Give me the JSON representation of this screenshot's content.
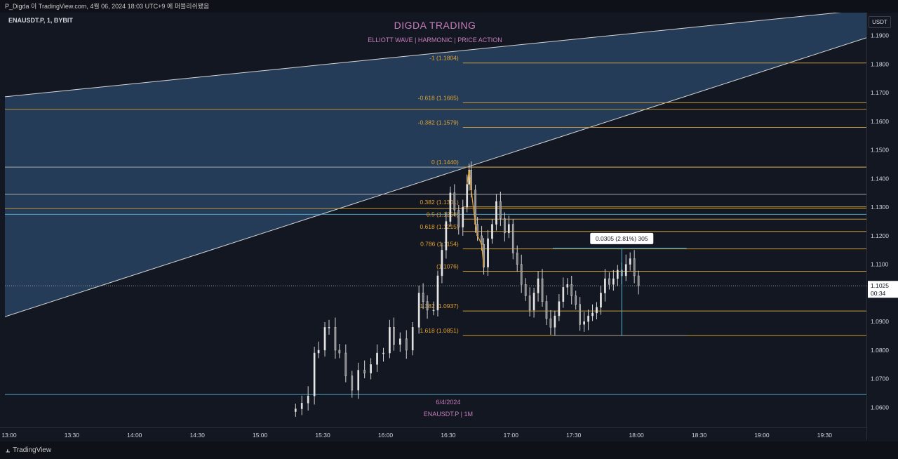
{
  "header": {
    "snapshot_text": "P_Digda 이 TradingView.com, 4월 06, 2024 18:03 UTC+9 에 퍼블리쉬됐음"
  },
  "symbol": {
    "label": "ENAUSDT.P, 1, BYBIT"
  },
  "price_axis": {
    "currency": "USDT"
  },
  "branding": {
    "title": "DIGDA TRADING",
    "subtitle": "ELLIOTT WAVE  |  HARMONIC  |  PRICE ACTION",
    "date_note": "6/4/2024",
    "symbol_note": "ENAUSDT.P | 1M"
  },
  "footer": {
    "logo_text": "TradingView"
  },
  "colors": {
    "background": "#131722",
    "fib": "#c99a3a",
    "fib_label": "#e0a030",
    "channel_fill": "#2b4a6b",
    "cyan_line": "#58b7d6",
    "annotation": "#c77dbb",
    "candle": "#d4d4d4"
  },
  "chart_data": {
    "type": "candlestick",
    "y_axis": {
      "range": [
        1.053,
        1.198
      ],
      "ticks": [
        "1.1900",
        "1.1800",
        "1.1700",
        "1.1600",
        "1.1500",
        "1.1400",
        "1.1300",
        "1.1200",
        "1.1100",
        "1.1000",
        "1.0900",
        "1.0800",
        "1.0700",
        "1.0600"
      ],
      "current_price": "1.1025",
      "countdown": "00:34"
    },
    "x_axis": {
      "ticks": [
        {
          "label": "13:00",
          "time": "13:00"
        },
        {
          "label": "13:30",
          "time": "13:30"
        },
        {
          "label": "14:00",
          "time": "14:00"
        },
        {
          "label": "14:30",
          "time": "14:30"
        },
        {
          "label": "15:00",
          "time": "15:00"
        },
        {
          "label": "15:30",
          "time": "15:30"
        },
        {
          "label": "16:00",
          "time": "16:00"
        },
        {
          "label": "16:30",
          "time": "16:30"
        },
        {
          "label": "17:00",
          "time": "17:00"
        },
        {
          "label": "17:30",
          "time": "17:30"
        },
        {
          "label": "18:00",
          "time": "18:00"
        },
        {
          "label": "18:30",
          "time": "18:30"
        },
        {
          "label": "19:00",
          "time": "19:00"
        },
        {
          "label": "19:30",
          "time": "19:30"
        }
      ]
    },
    "fib_levels": [
      {
        "label": "-1 (1.1804)",
        "price": 1.1804
      },
      {
        "label": "-0.618 (1.1665)",
        "price": 1.1665
      },
      {
        "label": "-0.382 (1.1579)",
        "price": 1.1579
      },
      {
        "label": "0 (1.1440)",
        "price": 1.144
      },
      {
        "label": "0.382 (1.1301)",
        "price": 1.1301
      },
      {
        "label": "0.5 (1.1258)",
        "price": 1.1258
      },
      {
        "label": "0.618 (1.1215)",
        "price": 1.1215
      },
      {
        "label": "0.786 (1.1154)",
        "price": 1.1154
      },
      {
        "label": "(1.1076)",
        "price": 1.1076
      },
      {
        "label": "1.382 (1.0937)",
        "price": 1.0937
      },
      {
        "label": "1.618 (1.0851)",
        "price": 1.0851
      }
    ],
    "horizontal_levels": [
      {
        "price": 1.1642,
        "color": "#c99a3a"
      },
      {
        "price": 1.144,
        "color": "#b7b7b7"
      },
      {
        "price": 1.1345,
        "color": "#b7b7b7"
      },
      {
        "price": 1.1295,
        "color": "#c99a3a"
      },
      {
        "price": 1.1275,
        "color": "#58b7d6"
      },
      {
        "price": 1.0645,
        "color": "#58b7d6"
      }
    ],
    "channel": {
      "upper": {
        "from": {
          "time": "12:58",
          "price": 1.1686
        },
        "to": {
          "time": "19:50",
          "price": 1.199
        }
      },
      "lower": {
        "from": {
          "time": "12:58",
          "price": 1.0917
        },
        "to": {
          "time": "19:50",
          "price": 1.1892
        }
      }
    },
    "measure": {
      "label": "0.0305 (2.81%) 305",
      "high": 1.1156,
      "low": 1.0851
    },
    "candles": [
      {
        "time": "15:17",
        "close": 1.0595
      },
      {
        "time": "15:20",
        "close": 1.0615
      },
      {
        "time": "15:23",
        "close": 1.064
      },
      {
        "time": "15:26",
        "close": 1.079
      },
      {
        "time": "15:28",
        "close": 1.08
      },
      {
        "time": "15:31",
        "close": 1.088
      },
      {
        "time": "15:33",
        "close": 1.088
      },
      {
        "time": "15:36",
        "close": 1.08
      },
      {
        "time": "15:38",
        "close": 1.079
      },
      {
        "time": "15:41",
        "close": 1.071
      },
      {
        "time": "15:44",
        "close": 1.066
      },
      {
        "time": "15:47",
        "close": 1.073
      },
      {
        "time": "15:50",
        "close": 1.072
      },
      {
        "time": "15:53",
        "close": 1.075
      },
      {
        "time": "15:56",
        "close": 1.079
      },
      {
        "time": "15:59",
        "close": 1.079
      },
      {
        "time": "16:02",
        "close": 1.088
      },
      {
        "time": "16:04",
        "close": 1.082
      },
      {
        "time": "16:07",
        "close": 1.084
      },
      {
        "time": "16:10",
        "close": 1.08
      },
      {
        "time": "16:13",
        "close": 1.088
      },
      {
        "time": "16:16",
        "close": 1.1
      },
      {
        "time": "16:18",
        "close": 1.097
      },
      {
        "time": "16:20",
        "close": 1.094
      },
      {
        "time": "16:23",
        "close": 1.094
      },
      {
        "time": "16:25",
        "close": 1.106
      },
      {
        "time": "16:27",
        "close": 1.115
      },
      {
        "time": "16:29",
        "close": 1.125
      },
      {
        "time": "16:31",
        "close": 1.135
      },
      {
        "time": "16:33",
        "close": 1.129
      },
      {
        "time": "16:35",
        "close": 1.123
      },
      {
        "time": "16:37",
        "close": 1.13
      },
      {
        "time": "16:39",
        "close": 1.138
      },
      {
        "time": "16:40",
        "close": 1.143
      },
      {
        "time": "16:41",
        "close": 1.136
      },
      {
        "time": "16:43",
        "close": 1.124
      },
      {
        "time": "16:44",
        "close": 1.12
      },
      {
        "time": "16:46",
        "close": 1.117
      },
      {
        "time": "16:47",
        "close": 1.109
      },
      {
        "time": "16:49",
        "close": 1.119
      },
      {
        "time": "16:51",
        "close": 1.124
      },
      {
        "time": "16:53",
        "close": 1.132
      },
      {
        "time": "16:55",
        "close": 1.126
      },
      {
        "time": "16:57",
        "close": 1.121
      },
      {
        "time": "16:59",
        "close": 1.124
      },
      {
        "time": "17:01",
        "close": 1.114
      },
      {
        "time": "17:03",
        "close": 1.11
      },
      {
        "time": "17:05",
        "close": 1.103
      },
      {
        "time": "17:07",
        "close": 1.099
      },
      {
        "time": "17:09",
        "close": 1.094
      },
      {
        "time": "17:11",
        "close": 1.1
      },
      {
        "time": "17:13",
        "close": 1.105
      },
      {
        "time": "17:15",
        "close": 1.097
      },
      {
        "time": "17:17",
        "close": 1.091
      },
      {
        "time": "17:19",
        "close": 1.088
      },
      {
        "time": "17:21",
        "close": 1.092
      },
      {
        "time": "17:23",
        "close": 1.097
      },
      {
        "time": "17:25",
        "close": 1.102
      },
      {
        "time": "17:27",
        "close": 1.103
      },
      {
        "time": "17:29",
        "close": 1.099
      },
      {
        "time": "17:31",
        "close": 1.096
      },
      {
        "time": "17:33",
        "close": 1.089
      },
      {
        "time": "17:35",
        "close": 1.09
      },
      {
        "time": "17:37",
        "close": 1.092
      },
      {
        "time": "17:39",
        "close": 1.093
      },
      {
        "time": "17:41",
        "close": 1.095
      },
      {
        "time": "17:43",
        "close": 1.1
      },
      {
        "time": "17:45",
        "close": 1.105
      },
      {
        "time": "17:47",
        "close": 1.103
      },
      {
        "time": "17:49",
        "close": 1.105
      },
      {
        "time": "17:51",
        "close": 1.108
      },
      {
        "time": "17:53",
        "close": 1.106
      },
      {
        "time": "17:55",
        "close": 1.11
      },
      {
        "time": "17:57",
        "close": 1.112
      },
      {
        "time": "17:59",
        "close": 1.106
      },
      {
        "time": "18:01",
        "close": 1.1025
      }
    ]
  }
}
